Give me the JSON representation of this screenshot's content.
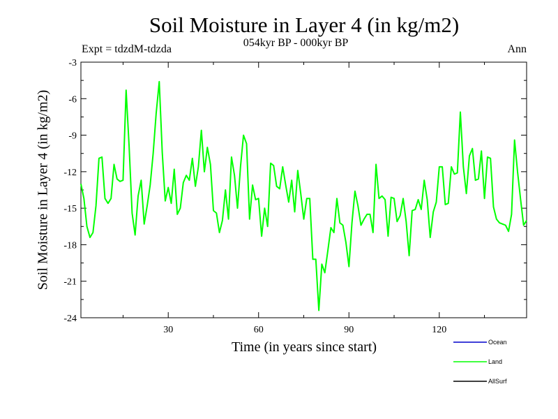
{
  "chart_data": {
    "type": "line",
    "title": "Soil Moisture in Layer 4 (in kg/m2)",
    "subtitle": "054kyr BP - 000kyr BP",
    "experiment": "Expt = tdzdM-tdzda",
    "period": "Ann",
    "xlabel": "Time (in years since start)",
    "ylabel": "Soil Moisture in Layer 4 (in kg/m2)",
    "xlim": [
      1,
      149
    ],
    "ylim": [
      -24,
      -3
    ],
    "x_ticks": [
      30,
      60,
      90,
      120
    ],
    "y_ticks": [
      -3,
      -6,
      -9,
      -12,
      -15,
      -18,
      -21,
      -24
    ],
    "series": [
      {
        "name": "Ocean",
        "color": "#0000cc",
        "values": []
      },
      {
        "name": "Land",
        "color": "#00ff00",
        "values": [
          -13.0,
          -14.2,
          -16.5,
          -17.4,
          -17.0,
          -14.8,
          -10.9,
          -10.8,
          -14.2,
          -14.6,
          -14.2,
          -11.4,
          -12.6,
          -12.8,
          -12.7,
          -5.3,
          -9.9,
          -15.4,
          -17.2,
          -14.0,
          -12.7,
          -16.3,
          -14.8,
          -13.1,
          -10.5,
          -7.2,
          -4.6,
          -10.4,
          -14.4,
          -13.3,
          -14.6,
          -11.8,
          -15.5,
          -15.0,
          -12.9,
          -12.3,
          -12.7,
          -10.9,
          -13.2,
          -11.6,
          -8.6,
          -12.0,
          -10.0,
          -11.4,
          -15.2,
          -15.4,
          -17.0,
          -16.0,
          -13.5,
          -15.9,
          -10.8,
          -12.3,
          -15.0,
          -11.6,
          -9.0,
          -9.7,
          -15.9,
          -13.1,
          -14.3,
          -14.2,
          -17.3,
          -15.0,
          -16.5,
          -11.3,
          -11.5,
          -13.2,
          -13.4,
          -11.6,
          -13.1,
          -14.5,
          -12.7,
          -15.3,
          -11.9,
          -13.8,
          -15.9,
          -14.2,
          -14.2,
          -19.2,
          -19.2,
          -23.4,
          -19.6,
          -20.3,
          -18.5,
          -16.6,
          -17.0,
          -14.2,
          -16.2,
          -16.4,
          -17.8,
          -19.8,
          -16.2,
          -13.6,
          -14.8,
          -16.4,
          -15.9,
          -15.5,
          -15.5,
          -17.0,
          -11.4,
          -14.2,
          -14.0,
          -14.3,
          -17.3,
          -14.1,
          -14.2,
          -16.1,
          -15.6,
          -14.2,
          -16.1,
          -18.9,
          -15.2,
          -15.1,
          -14.3,
          -15.1,
          -12.7,
          -14.3,
          -17.4,
          -15.3,
          -14.5,
          -11.6,
          -11.6,
          -14.7,
          -14.6,
          -11.6,
          -12.2,
          -12.1,
          -7.1,
          -11.6,
          -13.8,
          -10.7,
          -10.1,
          -12.7,
          -12.6,
          -10.3,
          -14.2,
          -10.8,
          -10.9,
          -14.9,
          -15.9,
          -16.2,
          -16.3,
          -16.4,
          -16.9,
          -15.5,
          -9.4,
          -12.0,
          -14.3,
          -16.4,
          -16.0
        ]
      },
      {
        "name": "AllSurf",
        "color": "#000000",
        "values": []
      }
    ]
  }
}
